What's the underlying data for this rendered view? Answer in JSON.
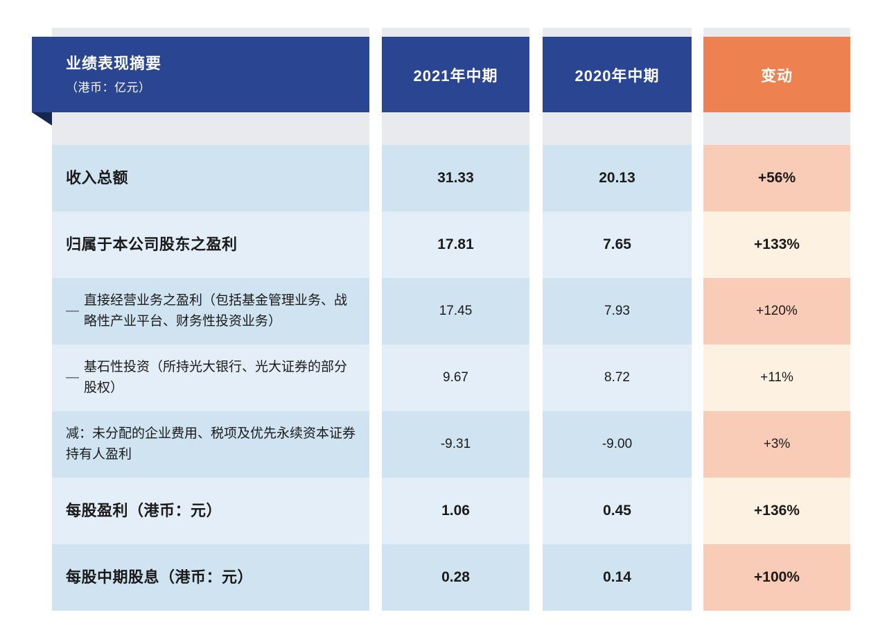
{
  "header": {
    "title": "业绩表现摘要",
    "unit": "（港币：亿元）",
    "columns": [
      "2021年中期",
      "2020年中期",
      "变动"
    ]
  },
  "rows": [
    {
      "dash": "",
      "label": "收入总额",
      "v2021": "31.33",
      "v2020": "20.13",
      "change": "+56%",
      "bold": true
    },
    {
      "dash": "",
      "label": "归属于本公司股东之盈利",
      "v2021": "17.81",
      "v2020": "7.65",
      "change": "+133%",
      "bold": true
    },
    {
      "dash": "—",
      "label": "直接经营业务之盈利（包括基金管理业务、战略性产业平台、财务性投资业务）",
      "v2021": "17.45",
      "v2020": "7.93",
      "change": "+120%",
      "bold": false
    },
    {
      "dash": "—",
      "label": "基石性投资（所持光大银行、光大证券的部分股权）",
      "v2021": "9.67",
      "v2020": "8.72",
      "change": "+11%",
      "bold": false
    },
    {
      "dash": "",
      "label": "减：未分配的企业费用、税项及优先永续资本证券持有人盈利",
      "v2021": "-9.31",
      "v2020": "-9.00",
      "change": "+3%",
      "bold": false
    },
    {
      "dash": "",
      "label": "每股盈利（港币：元）",
      "v2021": "1.06",
      "v2020": "0.45",
      "change": "+136%",
      "bold": true
    },
    {
      "dash": "",
      "label": "每股中期股息（港币：元）",
      "v2021": "0.28",
      "v2020": "0.14",
      "change": "+100%",
      "bold": true
    }
  ],
  "colors": {
    "navy": "#2a4591",
    "fold": "#16254f",
    "orange": "#ee8150",
    "rowDark": "#d0e3f1",
    "rowLight": "#e4eef8",
    "peach": "#f9ccb7",
    "cream": "#fdf2e2",
    "gray": "#e9eaed"
  }
}
